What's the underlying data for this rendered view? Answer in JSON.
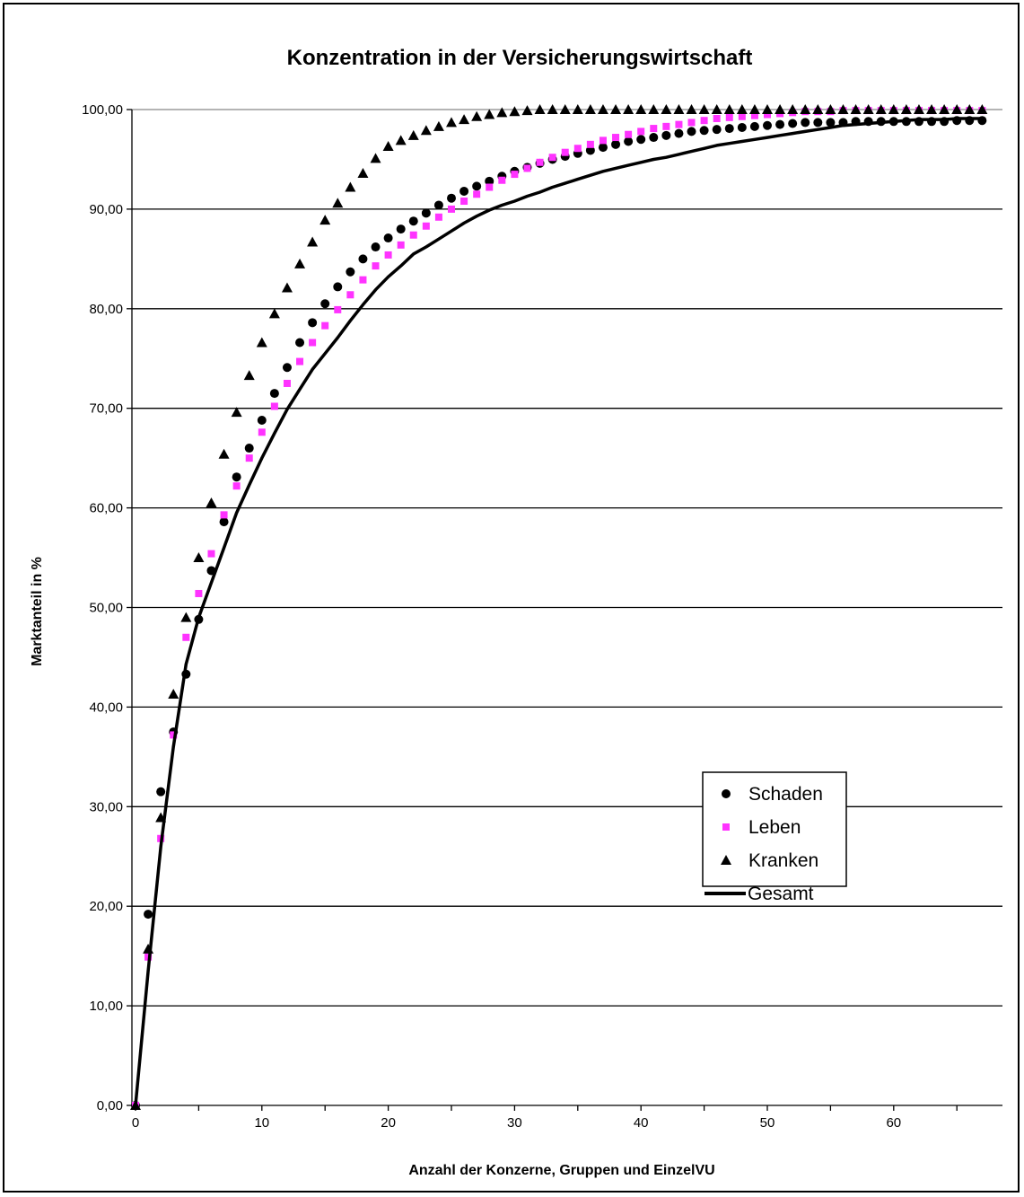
{
  "chart_data": {
    "type": "scatter",
    "title": "Konzentration in der Versicherungswirtschaft",
    "xlabel": "Anzahl der Konzerne, Gruppen und EinzelVU",
    "ylabel": "Marktanteil in %",
    "xlim": [
      0,
      67.5
    ],
    "ylim": [
      0,
      100
    ],
    "x_ticks": [
      "0",
      "10",
      "20",
      "30",
      "40",
      "50",
      "60"
    ],
    "y_ticks": [
      "0,00",
      "10,00",
      "20,00",
      "30,00",
      "40,00",
      "50,00",
      "60,00",
      "70,00",
      "80,00",
      "90,00",
      "100,00"
    ],
    "grid": "horizontal",
    "legend": "lower-right",
    "series": [
      {
        "name": "Schaden",
        "marker": "circle",
        "color": "#000000",
        "x": [
          0,
          1,
          2,
          3,
          4,
          5,
          6,
          7,
          8,
          9,
          10,
          11,
          12,
          13,
          14,
          15,
          16,
          17,
          18,
          19,
          20,
          21,
          22,
          23,
          24,
          25,
          26,
          27,
          28,
          29,
          30,
          31,
          32,
          33,
          34,
          35,
          36,
          37,
          38,
          39,
          40,
          41,
          42,
          43,
          44,
          45,
          46,
          47,
          48,
          49,
          50,
          51,
          52,
          53,
          54,
          55,
          56,
          57,
          58,
          59,
          60,
          61,
          62,
          63,
          64,
          65,
          66,
          67
        ],
        "y": [
          0.0,
          19.2,
          31.5,
          37.5,
          43.3,
          48.8,
          53.7,
          58.6,
          63.1,
          66.0,
          68.8,
          71.5,
          74.1,
          76.6,
          78.6,
          80.5,
          82.2,
          83.7,
          85.0,
          86.2,
          87.1,
          88.0,
          88.8,
          89.6,
          90.4,
          91.1,
          91.8,
          92.3,
          92.8,
          93.3,
          93.8,
          94.2,
          94.6,
          95.0,
          95.3,
          95.6,
          95.9,
          96.2,
          96.5,
          96.8,
          97.0,
          97.2,
          97.4,
          97.6,
          97.8,
          97.9,
          98.0,
          98.1,
          98.2,
          98.3,
          98.4,
          98.5,
          98.6,
          98.7,
          98.7,
          98.7,
          98.7,
          98.8,
          98.8,
          98.8,
          98.8,
          98.8,
          98.8,
          98.8,
          98.8,
          98.9,
          98.9,
          98.9
        ]
      },
      {
        "name": "Leben",
        "marker": "square",
        "color": "#FF33FF",
        "x": [
          0,
          1,
          2,
          3,
          4,
          5,
          6,
          7,
          8,
          9,
          10,
          11,
          12,
          13,
          14,
          15,
          16,
          17,
          18,
          19,
          20,
          21,
          22,
          23,
          24,
          25,
          26,
          27,
          28,
          29,
          30,
          31,
          32,
          33,
          34,
          35,
          36,
          37,
          38,
          39,
          40,
          41,
          42,
          43,
          44,
          45,
          46,
          47,
          48,
          49,
          50,
          51,
          52,
          53,
          54,
          55,
          56,
          57,
          58,
          59,
          60,
          61,
          62,
          63,
          64,
          65,
          66,
          67
        ],
        "y": [
          0.0,
          14.9,
          26.8,
          37.2,
          47.0,
          51.4,
          55.4,
          59.3,
          62.2,
          65.0,
          67.6,
          70.2,
          72.5,
          74.7,
          76.6,
          78.3,
          79.9,
          81.4,
          82.9,
          84.3,
          85.4,
          86.4,
          87.4,
          88.3,
          89.2,
          90.0,
          90.8,
          91.5,
          92.2,
          92.9,
          93.5,
          94.1,
          94.7,
          95.2,
          95.7,
          96.1,
          96.5,
          96.9,
          97.2,
          97.5,
          97.8,
          98.1,
          98.3,
          98.5,
          98.7,
          98.9,
          99.1,
          99.2,
          99.3,
          99.4,
          99.5,
          99.6,
          99.7,
          99.8,
          99.8,
          99.8,
          99.9,
          99.9,
          99.9,
          99.9,
          99.9,
          99.9,
          99.9,
          99.9,
          99.9,
          99.9,
          99.9,
          99.9
        ]
      },
      {
        "name": "Kranken",
        "marker": "triangle",
        "color": "#000000",
        "x": [
          0,
          1,
          2,
          3,
          4,
          5,
          6,
          7,
          8,
          9,
          10,
          11,
          12,
          13,
          14,
          15,
          16,
          17,
          18,
          19,
          20,
          21,
          22,
          23,
          24,
          25,
          26,
          27,
          28,
          29,
          30,
          31,
          32,
          33,
          34,
          35,
          36,
          37,
          38,
          39,
          40,
          41,
          42,
          43,
          44,
          45,
          46,
          47,
          48,
          49,
          50,
          51,
          52,
          53,
          54,
          55,
          56,
          57,
          58,
          59,
          60,
          61,
          62,
          63,
          64,
          65,
          66,
          67
        ],
        "y": [
          0.0,
          15.7,
          28.9,
          41.3,
          49.0,
          55.0,
          60.5,
          65.4,
          69.6,
          73.3,
          76.6,
          79.5,
          82.1,
          84.5,
          86.7,
          88.9,
          90.6,
          92.2,
          93.6,
          95.1,
          96.3,
          96.9,
          97.4,
          97.9,
          98.3,
          98.7,
          99.0,
          99.3,
          99.5,
          99.7,
          99.8,
          99.9,
          100.0,
          100.0,
          100.0,
          100.0,
          100.0,
          100.0,
          100.0,
          100.0,
          100.0,
          100.0,
          100.0,
          100.0,
          100.0,
          100.0,
          100.0,
          100.0,
          100.0,
          100.0,
          100.0,
          100.0,
          100.0,
          100.0,
          100.0,
          100.0,
          100.0,
          100.0,
          100.0,
          100.0,
          100.0,
          100.0,
          100.0,
          100.0,
          100.0,
          100.0,
          100.0,
          100.0
        ]
      },
      {
        "name": "Gesamt",
        "marker": "line",
        "color": "#000000",
        "x": [
          0,
          1,
          2,
          3,
          4,
          5,
          6,
          7,
          8,
          9,
          10,
          11,
          12,
          13,
          14,
          15,
          16,
          17,
          18,
          19,
          20,
          21,
          22,
          23,
          24,
          25,
          26,
          27,
          28,
          29,
          30,
          31,
          32,
          33,
          34,
          35,
          36,
          37,
          38,
          39,
          40,
          41,
          42,
          43,
          44,
          45,
          46,
          47,
          48,
          49,
          50,
          51,
          52,
          53,
          54,
          55,
          56,
          57,
          58,
          59,
          60,
          61,
          62,
          63,
          64,
          65,
          66,
          67
        ],
        "y": [
          0.0,
          13.5,
          26.0,
          36.0,
          44.3,
          49.0,
          52.5,
          56.0,
          59.5,
          62.3,
          65.0,
          67.5,
          69.9,
          71.9,
          73.9,
          75.5,
          77.1,
          78.8,
          80.4,
          81.9,
          83.2,
          84.3,
          85.5,
          86.2,
          87.0,
          87.8,
          88.6,
          89.3,
          89.9,
          90.4,
          90.8,
          91.3,
          91.7,
          92.2,
          92.6,
          93.0,
          93.4,
          93.8,
          94.1,
          94.4,
          94.7,
          95.0,
          95.2,
          95.5,
          95.8,
          96.1,
          96.4,
          96.6,
          96.8,
          97.0,
          97.2,
          97.4,
          97.6,
          97.8,
          98.0,
          98.2,
          98.4,
          98.5,
          98.6,
          98.7,
          98.8,
          98.9,
          99.0,
          99.0,
          99.0,
          99.1,
          99.1,
          99.1
        ]
      }
    ]
  }
}
